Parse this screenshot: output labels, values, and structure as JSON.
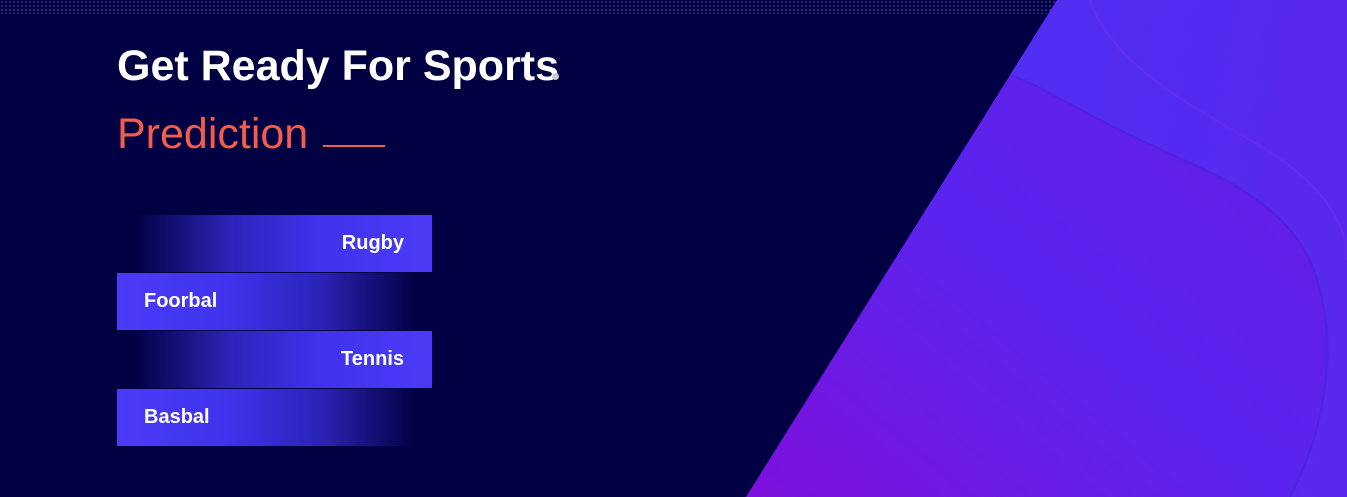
{
  "hero": {
    "title": "Get Ready For Sports",
    "subtitle": "Prediction"
  },
  "sports": [
    {
      "label": "Rugby",
      "align": "right"
    },
    {
      "label": "Foorbal",
      "align": "left"
    },
    {
      "label": "Tennis",
      "align": "right"
    },
    {
      "label": "Basbal",
      "align": "left"
    }
  ],
  "colors": {
    "background": "#010042",
    "accent": "#f35d4d",
    "item": "#4a3bf7",
    "shape_start": "#4436f0",
    "shape_end": "#7a12e0"
  }
}
